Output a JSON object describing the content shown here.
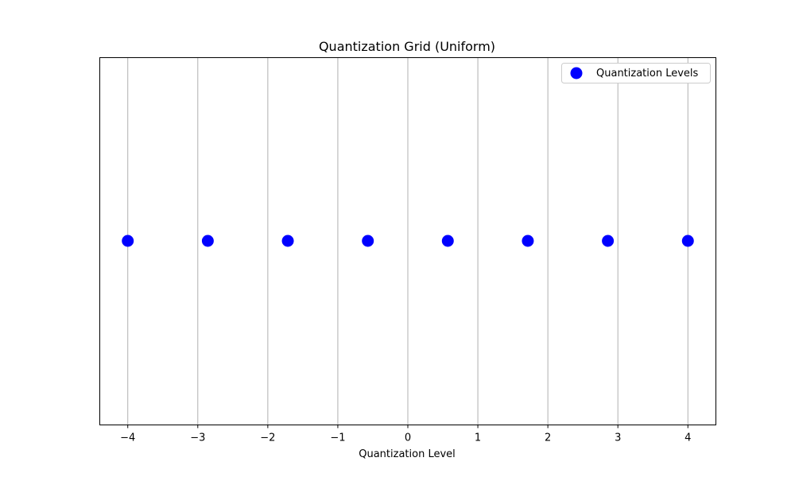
{
  "chart_data": {
    "type": "scatter",
    "title": "Quantization Grid (Uniform)",
    "xlabel": "Quantization Level",
    "ylabel": "",
    "xlim": [
      -4.4,
      4.4
    ],
    "xticks": [
      -4,
      -3,
      -2,
      -1,
      0,
      1,
      2,
      3,
      4
    ],
    "xtick_labels": [
      "−4",
      "−3",
      "−2",
      "−1",
      "0",
      "1",
      "2",
      "3",
      "4"
    ],
    "grid": "x-axis",
    "legend_position": "top-right",
    "series": [
      {
        "name": "Quantization Levels",
        "color": "#0000ff",
        "x": [
          -4,
          -2.857,
          -1.714,
          -0.571,
          0.571,
          1.714,
          2.857,
          4
        ],
        "y": [
          0,
          0,
          0,
          0,
          0,
          0,
          0,
          0
        ]
      }
    ]
  }
}
